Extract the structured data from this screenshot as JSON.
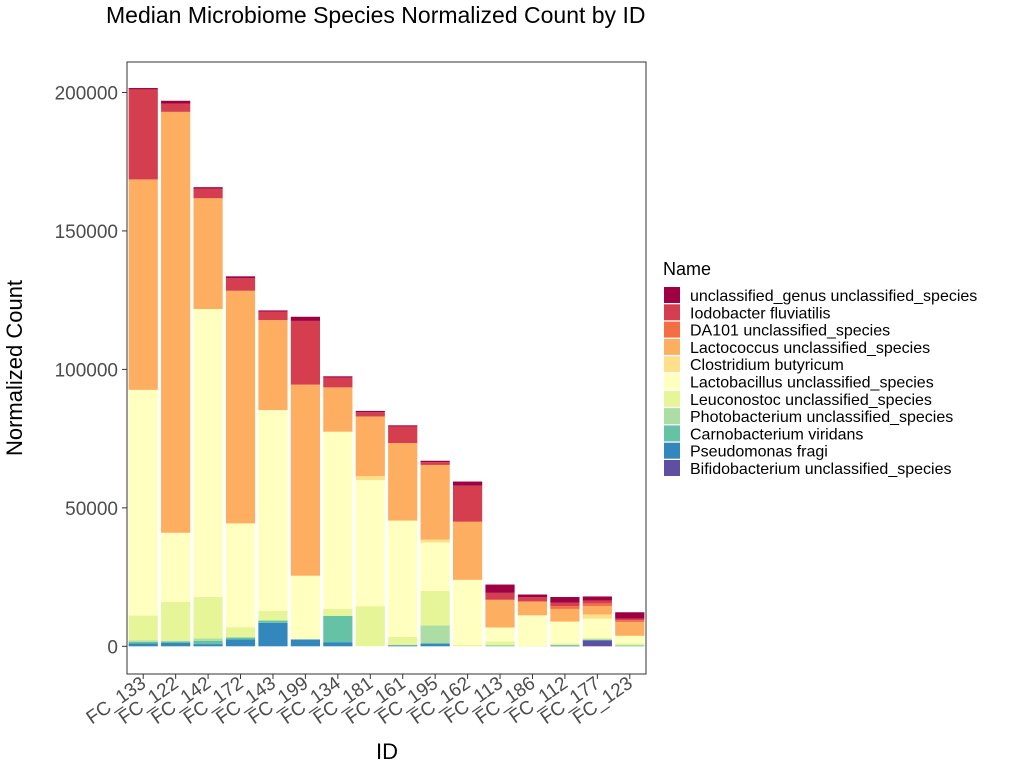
{
  "chart_data": {
    "type": "bar",
    "stacked": true,
    "title": "Median Microbiome Species Normalized Count by ID",
    "xlabel": "ID",
    "ylabel": "Normalized Count",
    "ylim": [
      -10000,
      211000
    ],
    "yticks": [
      0,
      50000,
      100000,
      150000,
      200000
    ],
    "ytick_labels": [
      "0",
      "50000",
      "100000",
      "150000",
      "200000"
    ],
    "grid": false,
    "legend_position": "right",
    "legend_title": "Name",
    "categories": [
      "FC_133",
      "FC_122",
      "FC_142",
      "FC_172",
      "FC_143",
      "FC_199",
      "FC_134",
      "FC_181",
      "FC_161",
      "FC_195",
      "FC_162",
      "FC_113",
      "FC_186",
      "FC_112",
      "FC_177",
      "FC_123"
    ],
    "series": [
      {
        "name": "Bifidobacterium unclassified_species",
        "color": "#5E4FA2",
        "values": [
          0,
          0,
          0,
          0,
          0,
          0,
          0,
          0,
          0,
          0,
          0,
          0,
          0,
          0,
          2000,
          0
        ]
      },
      {
        "name": "Pseudomonas fragi",
        "color": "#3288BD",
        "values": [
          1000,
          1200,
          800,
          2500,
          8500,
          2500,
          1500,
          0,
          400,
          1000,
          0,
          0,
          0,
          300,
          400,
          0
        ]
      },
      {
        "name": "Carnobacterium viridans",
        "color": "#66C2A5",
        "values": [
          600,
          500,
          1200,
          500,
          800,
          0,
          9500,
          0,
          0,
          0,
          0,
          300,
          0,
          0,
          0,
          300
        ]
      },
      {
        "name": "Photobacterium unclassified_species",
        "color": "#ABDDA4",
        "values": [
          500,
          300,
          800,
          400,
          0,
          0,
          0,
          0,
          0,
          6500,
          0,
          0,
          0,
          0,
          0,
          0
        ]
      },
      {
        "name": "Leuconostoc unclassified_species",
        "color": "#E6F598",
        "values": [
          9000,
          14000,
          15000,
          3500,
          3500,
          0,
          2500,
          14500,
          3000,
          12500,
          500,
          1500,
          200,
          700,
          600,
          700
        ]
      },
      {
        "name": "Lactobacillus unclassified_species",
        "color": "#FFFFBF",
        "values": [
          81500,
          25000,
          104000,
          37500,
          72500,
          23000,
          64000,
          45500,
          42000,
          17500,
          23500,
          5000,
          11000,
          7800,
          7000,
          2800
        ]
      },
      {
        "name": "Clostridium butyricum",
        "color": "#FEE08B",
        "values": [
          0,
          0,
          0,
          0,
          0,
          0,
          0,
          1500,
          0,
          1000,
          0,
          0,
          0,
          200,
          1500,
          0
        ]
      },
      {
        "name": "Lactococcus unclassified_species",
        "color": "#FDAE61",
        "values": [
          76000,
          152000,
          40000,
          84000,
          32500,
          69000,
          16000,
          21500,
          28000,
          27000,
          21000,
          10000,
          5000,
          4500,
          3000,
          5000
        ]
      },
      {
        "name": "DA101 unclassified_species",
        "color": "#F46D43",
        "values": [
          0,
          0,
          0,
          0,
          0,
          0,
          0,
          0,
          0,
          0,
          0,
          0,
          0,
          1000,
          1000,
          600
        ]
      },
      {
        "name": "Iodobacter fluviatilis",
        "color": "#D53E4F",
        "values": [
          32500,
          3000,
          3500,
          4500,
          3000,
          23000,
          3500,
          1500,
          6000,
          1000,
          13000,
          2500,
          1500,
          1300,
          1000,
          600
        ]
      },
      {
        "name": "unclassified_genus unclassified_species",
        "color": "#9E0142",
        "values": [
          500,
          1000,
          500,
          700,
          500,
          1500,
          500,
          500,
          400,
          500,
          1500,
          3000,
          1000,
          2000,
          1500,
          2300
        ]
      }
    ]
  }
}
